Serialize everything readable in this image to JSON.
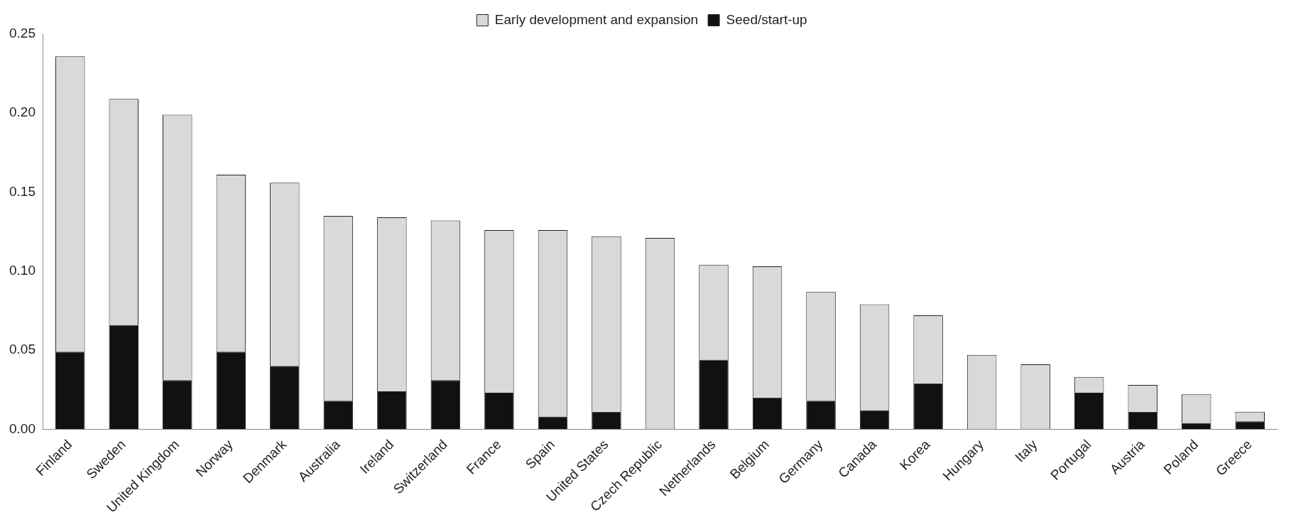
{
  "chart_data": {
    "type": "bar",
    "stacked": true,
    "legend": "top",
    "grid": false,
    "categories": [
      "Finland",
      "Sweden",
      "United Kingdom",
      "Norway",
      "Denmark",
      "Australia",
      "Ireland",
      "Switzerland",
      "France",
      "Spain",
      "United States",
      "Czech Republic",
      "Netherlands",
      "Belgium",
      "Germany",
      "Canada",
      "Korea",
      "Hungary",
      "Italy",
      "Portugal",
      "Austria",
      "Poland",
      "Greece"
    ],
    "series": [
      {
        "name": "Seed/start-up",
        "color": "#111111",
        "values": [
          0.049,
          0.066,
          0.031,
          0.049,
          0.04,
          0.018,
          0.024,
          0.031,
          0.023,
          0.008,
          0.011,
          0,
          0.044,
          0.02,
          0.018,
          0.012,
          0.029,
          0,
          0,
          0.023,
          0.011,
          0.004,
          0.005
        ]
      },
      {
        "name": "Early development and expansion",
        "color": "#d9d9d9",
        "values": [
          0.187,
          0.143,
          0.168,
          0.112,
          0.116,
          0.117,
          0.11,
          0.101,
          0.103,
          0.118,
          0.111,
          0.121,
          0.06,
          0.083,
          0.069,
          0.067,
          0.043,
          0.047,
          0.041,
          0.01,
          0.017,
          0.018,
          0.006
        ]
      }
    ],
    "ylim": [
      0,
      0.25
    ],
    "yticks": [
      {
        "value": 0,
        "label": "0.00"
      },
      {
        "value": 0.05,
        "label": "0.05"
      },
      {
        "value": 0.1,
        "label": "0.10"
      },
      {
        "value": 0.15,
        "label": "0.15"
      },
      {
        "value": 0.2,
        "label": "0.20"
      },
      {
        "value": 0.25,
        "label": "0.25"
      }
    ]
  }
}
